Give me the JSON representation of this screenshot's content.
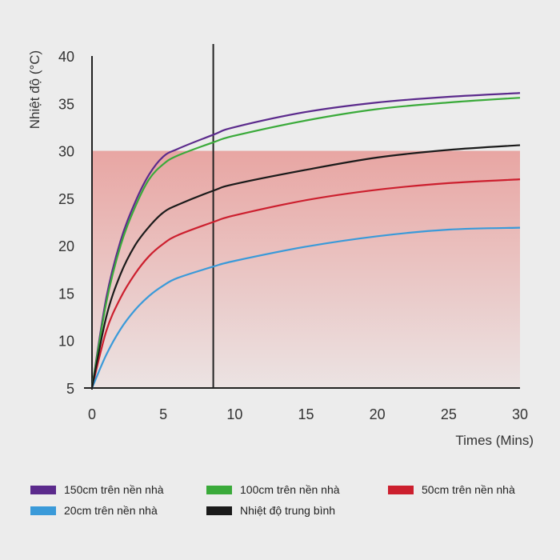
{
  "chart_data": {
    "type": "line",
    "ylabel": "Nhiệt độ (°C)",
    "xlabel": "Times (Mins)",
    "xlim": [
      0,
      30
    ],
    "ylim": [
      5,
      40
    ],
    "x_ticks": [
      0,
      5,
      10,
      15,
      20,
      25,
      30
    ],
    "y_ticks": [
      5,
      10,
      15,
      20,
      25,
      30,
      35,
      40
    ],
    "marker_line_x": 8.5,
    "comfort_band": {
      "y_min": 5,
      "y_max": 30,
      "color": "#e8a29f"
    },
    "x": [
      0,
      1,
      2,
      3,
      4,
      5,
      6,
      8.5,
      10,
      15,
      20,
      25,
      30
    ],
    "series": [
      {
        "name": "150cm trên nền nhà",
        "color": "#5b2a8c",
        "values": [
          5,
          14.5,
          20.5,
          24.5,
          27.5,
          29.4,
          30.2,
          31.7,
          32.5,
          34.1,
          35.1,
          35.7,
          36.1
        ]
      },
      {
        "name": "100cm trên nền nhà",
        "color": "#3aaa3a",
        "values": [
          5,
          14,
          20,
          24,
          27,
          28.6,
          29.5,
          30.9,
          31.6,
          33.2,
          34.4,
          35.1,
          35.6
        ]
      },
      {
        "name": "50cm trên nền nhà",
        "color": "#cc1f2e",
        "values": [
          5,
          11,
          14.5,
          17,
          18.9,
          20.2,
          21.1,
          22.5,
          23.2,
          24.8,
          25.9,
          26.6,
          27
        ]
      },
      {
        "name": "20cm trên nền nhà",
        "color": "#3a9ad9",
        "values": [
          5,
          8.5,
          11.2,
          13.2,
          14.7,
          15.8,
          16.6,
          17.8,
          18.4,
          19.9,
          21,
          21.7,
          21.9
        ]
      },
      {
        "name": "Nhiệt độ trung bình",
        "color": "#1a1a1a",
        "values": [
          5,
          12.5,
          17,
          20,
          22,
          23.5,
          24.3,
          25.8,
          26.5,
          28,
          29.3,
          30.1,
          30.6
        ]
      }
    ]
  },
  "legend_order": [
    0,
    1,
    2,
    3,
    4
  ]
}
